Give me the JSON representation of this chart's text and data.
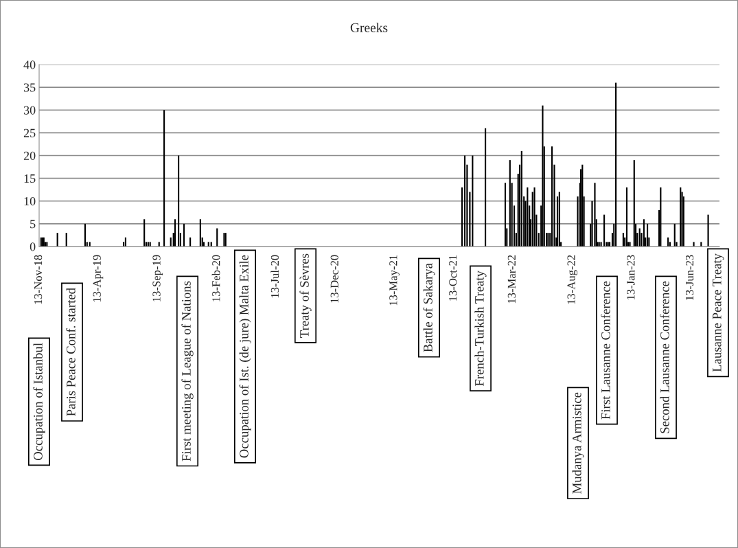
{
  "chart_data": {
    "type": "bar",
    "title": "Greeks",
    "x": [
      "1918-11-18",
      "1918-11-22",
      "1918-11-25",
      "1918-11-29",
      "1918-12-03",
      "1918-12-30",
      "1919-01-22",
      "1919-03-11",
      "1919-03-16",
      "1919-03-23",
      "1919-06-18",
      "1919-06-23",
      "1919-08-10",
      "1919-08-15",
      "1919-08-20",
      "1919-08-25",
      "1919-09-17",
      "1919-09-30",
      "1919-10-17",
      "1919-10-24",
      "1919-10-28",
      "1919-11-06",
      "1919-11-11",
      "1919-11-20",
      "1919-12-06",
      "1920-01-01",
      "1920-01-06",
      "1920-01-10",
      "1920-01-22",
      "1920-01-29",
      "1920-02-13",
      "1920-03-02",
      "1920-03-06",
      "1921-11-03",
      "1921-11-10",
      "1921-11-16",
      "1921-11-23",
      "1921-11-30",
      "1922-01-02",
      "1922-02-22",
      "1922-02-26",
      "1922-03-06",
      "1922-03-11",
      "1922-03-17",
      "1922-03-22",
      "1922-03-27",
      "1922-03-31",
      "1922-04-05",
      "1922-04-11",
      "1922-04-15",
      "1922-04-20",
      "1922-04-25",
      "1922-04-28",
      "1922-05-03",
      "1922-05-08",
      "1922-05-13",
      "1922-05-19",
      "1922-05-25",
      "1922-05-29",
      "1922-06-02",
      "1922-06-08",
      "1922-06-12",
      "1922-06-17",
      "1922-06-22",
      "1922-06-28",
      "1922-07-03",
      "1922-07-06",
      "1922-07-11",
      "1922-07-15",
      "1922-08-27",
      "1922-09-02",
      "1922-09-04",
      "1922-09-08",
      "1922-09-12",
      "1922-09-29",
      "1922-10-03",
      "1922-10-10",
      "1922-10-14",
      "1922-10-17",
      "1922-10-21",
      "1922-10-26",
      "1922-11-03",
      "1922-11-09",
      "1922-11-13",
      "1922-11-17",
      "1922-11-24",
      "1922-11-28",
      "1922-12-03",
      "1922-12-22",
      "1922-12-26",
      "1922-12-31",
      "1923-01-04",
      "1923-01-08",
      "1923-01-19",
      "1923-01-23",
      "1923-01-27",
      "1923-02-02",
      "1923-02-07",
      "1923-02-13",
      "1923-02-17",
      "1923-02-22",
      "1923-02-26",
      "1923-03-24",
      "1923-03-28",
      "1923-04-16",
      "1923-04-21",
      "1923-05-03",
      "1923-05-08",
      "1923-05-18",
      "1923-05-22",
      "1923-05-26",
      "1923-06-21",
      "1923-07-10",
      "1923-07-28"
    ],
    "values": [
      2,
      2,
      2,
      1,
      1,
      3,
      3,
      5,
      1,
      1,
      1,
      2,
      6,
      1,
      1,
      1,
      1,
      30,
      2,
      3,
      6,
      20,
      3,
      5,
      2,
      6,
      2,
      1,
      1,
      1,
      4,
      3,
      3,
      13,
      20,
      18,
      12,
      20,
      26,
      14,
      4,
      19,
      14,
      9,
      3,
      16,
      18,
      21,
      11,
      10,
      13,
      9,
      6,
      12,
      13,
      7,
      3,
      9,
      31,
      22,
      3,
      3,
      3,
      22,
      18,
      2,
      11,
      12,
      1,
      11,
      14,
      17,
      18,
      11,
      5,
      10,
      14,
      6,
      1,
      1,
      1,
      7,
      1,
      1,
      1,
      3,
      5,
      36,
      3,
      2,
      13,
      1,
      1,
      19,
      5,
      3,
      4,
      3,
      6,
      2,
      5,
      2,
      8,
      13,
      2,
      1,
      5,
      1,
      13,
      12,
      11,
      1,
      1,
      7
    ],
    "color": "#000000",
    "xlim": [
      "1918-11-13",
      "1923-08-26"
    ],
    "xticks": [
      {
        "value": "1918-11-13",
        "label": "13-Nov-18"
      },
      {
        "value": "1919-04-13",
        "label": "13-Apr-19"
      },
      {
        "value": "1919-09-13",
        "label": "13-Sep-19"
      },
      {
        "value": "1920-02-13",
        "label": "13-Feb-20"
      },
      {
        "value": "1920-07-13",
        "label": "13-Jul-20"
      },
      {
        "value": "1920-12-13",
        "label": "13-Dec-20"
      },
      {
        "value": "1921-05-13",
        "label": "13-May-21"
      },
      {
        "value": "1921-10-13",
        "label": "13-Oct-21"
      },
      {
        "value": "1922-03-13",
        "label": "13-Mar-22"
      },
      {
        "value": "1922-08-13",
        "label": "13-Aug-22"
      },
      {
        "value": "1923-01-13",
        "label": "13-Jan-23"
      },
      {
        "value": "1923-06-13",
        "label": "13-Jun-23"
      }
    ],
    "ylim": [
      0,
      40
    ],
    "yticks": [
      0,
      5,
      10,
      15,
      20,
      25,
      30,
      35,
      40
    ],
    "grid": "y",
    "annotations": [
      "Occupation of Istanbul",
      "Paris Peace Conf. started",
      "First meeting of League of Nations",
      "Occupation of Ist. (de jure) Malta Exile",
      "Treaty of Sèvres",
      "Battle of Sakarya",
      "French-Turkish Treaty",
      "Mudanya Armistice",
      "First Lausanne Conference",
      "Second Lausanne Conference",
      "Lausanne Peace Treaty"
    ]
  }
}
